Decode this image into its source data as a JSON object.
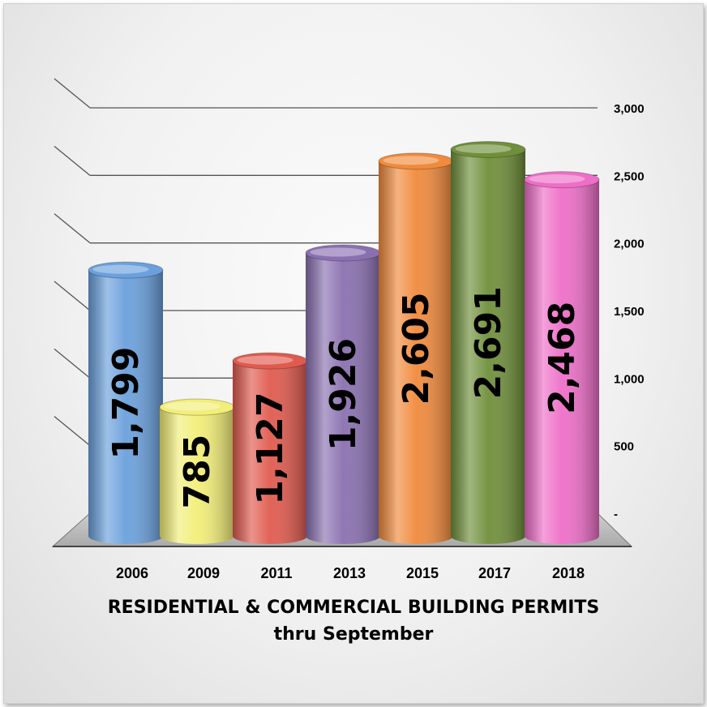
{
  "chart_data": {
    "type": "bar",
    "categories": [
      "2006",
      "2009",
      "2011",
      "2013",
      "2015",
      "2017",
      "2018"
    ],
    "values": [
      1799,
      785,
      1127,
      1926,
      2605,
      2691,
      2468
    ],
    "value_labels": [
      "1,799",
      "785",
      "1,127",
      "1,926",
      "2,605",
      "2,691",
      "2,468"
    ],
    "colors": [
      "#6aa0dc",
      "#f2ee78",
      "#e05a4e",
      "#8a70b0",
      "#f08a3c",
      "#6f8f3a",
      "#ee6ec8"
    ],
    "title": "RESIDENTIAL & COMMERCIAL  BUILDING PERMITS",
    "subtitle": "thru September",
    "xlabel": "",
    "ylabel": "",
    "ylim": [
      0,
      3000
    ],
    "yticks": [
      0,
      500,
      1000,
      1500,
      2000,
      2500,
      3000
    ],
    "ytick_labels": [
      "-",
      "500",
      "1,000",
      "1,500",
      "2,000",
      "2,500",
      "3,000"
    ],
    "grid": true,
    "style": "3d-cylinder"
  }
}
